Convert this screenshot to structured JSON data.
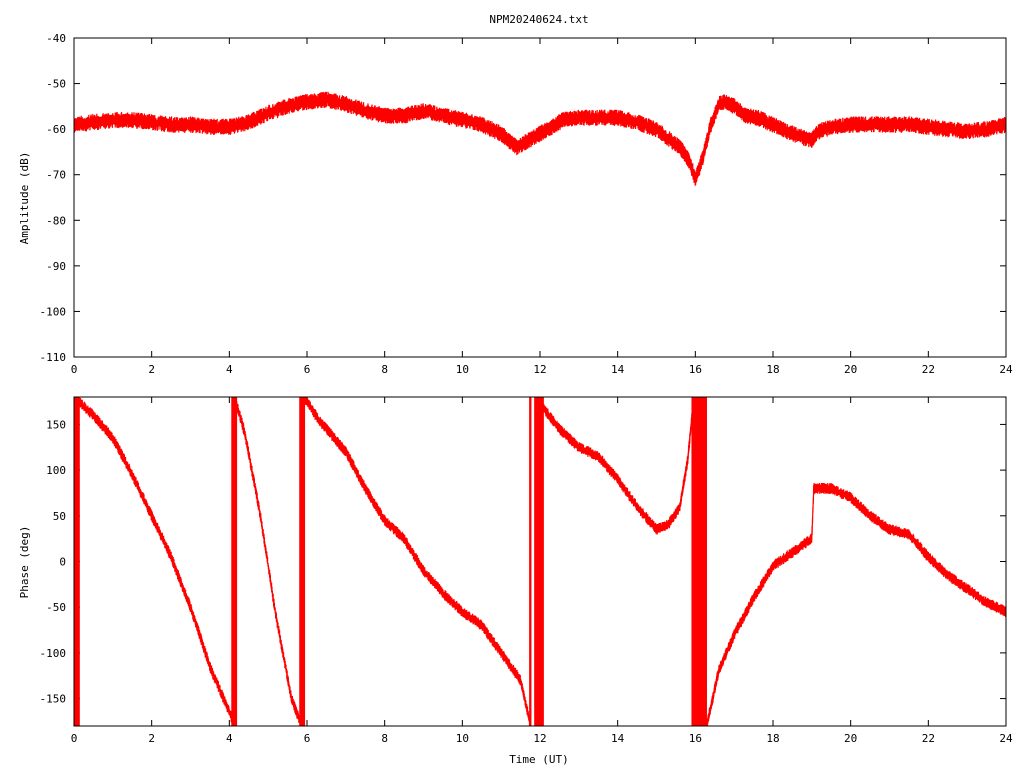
{
  "title": "NPM20240624.txt",
  "colors": {
    "trace": "#ff0000",
    "axis": "#000000",
    "background": "#ffffff"
  },
  "chart_data": [
    {
      "type": "line",
      "panel": "amplitude",
      "title": "NPM20240624.txt",
      "xlabel": "",
      "ylabel": "Amplitude (dB)",
      "xlim": [
        0,
        24
      ],
      "ylim": [
        -110,
        -40
      ],
      "xticks": [
        "0",
        "2",
        "4",
        "6",
        "8",
        "10",
        "12",
        "14",
        "16",
        "18",
        "20",
        "22",
        "24"
      ],
      "yticks": [
        "-40",
        "-50",
        "-60",
        "-70",
        "-80",
        "-90",
        "-100",
        "-110"
      ],
      "grid": false,
      "noise_band": 1.2,
      "series": [
        {
          "x": [
            0,
            0.5,
            1,
            1.5,
            2,
            2.5,
            3,
            3.5,
            4,
            4.5,
            5,
            5.5,
            6,
            6.5,
            7,
            7.5,
            8,
            8.5,
            9,
            9.5,
            10,
            10.5,
            11,
            11.4,
            11.8,
            12.2,
            12.6,
            13,
            13.5,
            14,
            14.5,
            15,
            15.3,
            15.6,
            15.85,
            16,
            16.2,
            16.4,
            16.6,
            16.8,
            17,
            17.3,
            17.6,
            18,
            18.5,
            19,
            19.1,
            19.3,
            19.6,
            20,
            20.5,
            21,
            21.5,
            22,
            22.5,
            23,
            23.5,
            24
          ],
          "y": [
            -59,
            -58.5,
            -58,
            -58,
            -58.5,
            -59,
            -59,
            -59.5,
            -59.5,
            -58.5,
            -56.5,
            -55,
            -54,
            -53.5,
            -54.5,
            -56,
            -57,
            -57,
            -56,
            -57,
            -58,
            -59,
            -61,
            -64,
            -62,
            -60,
            -58,
            -57.5,
            -57.5,
            -57.5,
            -58.5,
            -60,
            -62,
            -64,
            -67,
            -71,
            -66,
            -59,
            -54.5,
            -54,
            -55,
            -57,
            -57.5,
            -59,
            -61,
            -62.5,
            -61,
            -60,
            -59.5,
            -59,
            -59,
            -59,
            -59,
            -59.5,
            -60,
            -60.5,
            -60,
            -59
          ]
        }
      ]
    },
    {
      "type": "line",
      "panel": "phase",
      "xlabel": "Time (UT)",
      "ylabel": "Phase (deg)",
      "xlim": [
        0,
        24
      ],
      "ylim": [
        -180,
        180
      ],
      "xticks": [
        "0",
        "2",
        "4",
        "6",
        "8",
        "10",
        "12",
        "14",
        "16",
        "18",
        "20",
        "22",
        "24"
      ],
      "yticks": [
        "150",
        "100",
        "50",
        "0",
        "-50",
        "-100",
        "-150"
      ],
      "grid": false,
      "noise_band": 4,
      "series": [
        {
          "segments": [
            {
              "x": [
                0.05,
                0.5,
                1,
                1.5,
                2,
                2.5,
                3,
                3.5,
                4,
                4.12
              ],
              "y": [
                178,
                160,
                135,
                95,
                50,
                5,
                -50,
                -115,
                -165,
                -178
              ]
            },
            {
              "x": [
                4.15,
                4.4,
                4.8,
                5.2,
                5.6,
                5.85
              ],
              "y": [
                178,
                140,
                50,
                -60,
                -150,
                -178
              ]
            },
            {
              "x": [
                5.95,
                6.3,
                7,
                7.5,
                8,
                8.5,
                9,
                9.5,
                10,
                10.5,
                11,
                11.5,
                11.75
              ],
              "y": [
                178,
                155,
                120,
                80,
                45,
                25,
                -10,
                -35,
                -55,
                -70,
                -100,
                -130,
                -178
              ]
            },
            {
              "x": [
                12.05,
                12.5,
                13,
                13.5,
                14,
                14.5,
                15,
                15.3,
                15.6,
                15.8,
                15.95
              ],
              "y": [
                170,
                145,
                125,
                115,
                90,
                60,
                35,
                40,
                60,
                110,
                175
              ]
            },
            {
              "x": [
                16.3,
                16.6,
                17,
                17.5,
                18,
                18.5,
                19,
                19.05,
                19.5,
                20,
                20.5,
                21,
                21.5,
                22,
                22.5,
                23,
                23.5,
                24
              ],
              "y": [
                -178,
                -120,
                -80,
                -40,
                -5,
                10,
                25,
                80,
                80,
                70,
                50,
                35,
                30,
                5,
                -15,
                -30,
                -45,
                -55
              ]
            }
          ],
          "wraps": [
            {
              "x1": 0.0,
              "x2": 0.15
            },
            {
              "x1": 4.05,
              "x2": 4.2
            },
            {
              "x1": 5.8,
              "x2": 5.95
            },
            {
              "x1": 11.72,
              "x2": 11.78
            },
            {
              "x1": 11.85,
              "x2": 12.1
            },
            {
              "x1": 15.9,
              "x2": 16.3
            }
          ]
        }
      ]
    }
  ]
}
